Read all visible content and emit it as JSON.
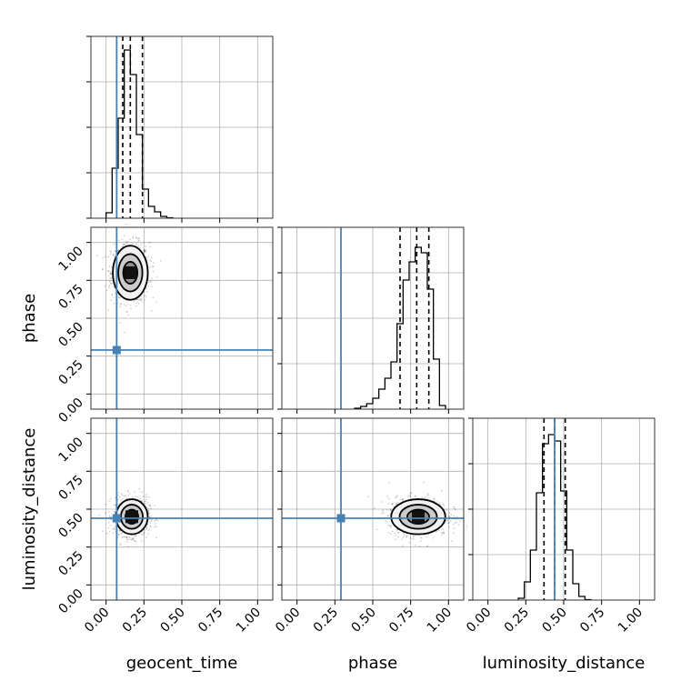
{
  "chart_data": {
    "type": "corner",
    "parameters": [
      {
        "name": "geocent_time",
        "injected": 0.07,
        "quantiles": [
          0.11,
          0.16,
          0.24
        ]
      },
      {
        "name": "phase",
        "injected": 0.29,
        "quantiles": [
          0.68,
          0.79,
          0.87
        ]
      },
      {
        "name": "luminosity_distance",
        "injected": 0.44,
        "quantiles": [
          0.37,
          0.44,
          0.51
        ]
      }
    ],
    "axis_range": [
      -0.1,
      1.1
    ],
    "ticks": [
      "0.00",
      "0.25",
      "0.50",
      "0.75",
      "1.00"
    ],
    "tick_values": [
      0,
      0.25,
      0.5,
      0.75,
      1.0
    ],
    "grid": true,
    "injection_color": "#4682b4",
    "histograms": [
      {
        "parameter": "geocent_time",
        "bin_edges": [
          0.0,
          0.04,
          0.08,
          0.12,
          0.16,
          0.2,
          0.24,
          0.28,
          0.32,
          0.36,
          0.4,
          0.44
        ],
        "counts": [
          0.06,
          0.55,
          1.1,
          1.85,
          1.58,
          0.92,
          0.32,
          0.13,
          0.07,
          0.02,
          0.005
        ]
      },
      {
        "parameter": "phase",
        "bin_edges": [
          0.38,
          0.42,
          0.46,
          0.5,
          0.54,
          0.58,
          0.62,
          0.66,
          0.7,
          0.74,
          0.78,
          0.82,
          0.86,
          0.9,
          0.94,
          0.98
        ],
        "counts": [
          0.01,
          0.03,
          0.06,
          0.12,
          0.22,
          0.34,
          0.52,
          0.94,
          1.42,
          1.62,
          1.78,
          1.72,
          1.32,
          0.55,
          0.04
        ]
      },
      {
        "parameter": "luminosity_distance",
        "bin_edges": [
          0.2,
          0.24,
          0.28,
          0.32,
          0.36,
          0.4,
          0.44,
          0.48,
          0.52,
          0.56,
          0.6,
          0.64,
          0.68
        ],
        "counts": [
          0.02,
          0.2,
          0.55,
          1.18,
          1.72,
          1.82,
          1.75,
          1.2,
          0.55,
          0.18,
          0.04,
          0.005
        ]
      }
    ],
    "hist_ylim": [
      0,
      2.0
    ],
    "contours_2d": [
      {
        "x_param": "geocent_time",
        "y_param": "phase",
        "center": [
          0.16,
          0.8
        ],
        "sigma": [
          0.055,
          0.085
        ],
        "rotation": 0
      },
      {
        "x_param": "geocent_time",
        "y_param": "luminosity_distance",
        "center": [
          0.17,
          0.45
        ],
        "sigma": [
          0.05,
          0.055
        ],
        "rotation": 0
      },
      {
        "x_param": "phase",
        "y_param": "luminosity_distance",
        "center": [
          0.8,
          0.45
        ],
        "sigma": [
          0.085,
          0.055
        ],
        "rotation": 0
      }
    ]
  }
}
